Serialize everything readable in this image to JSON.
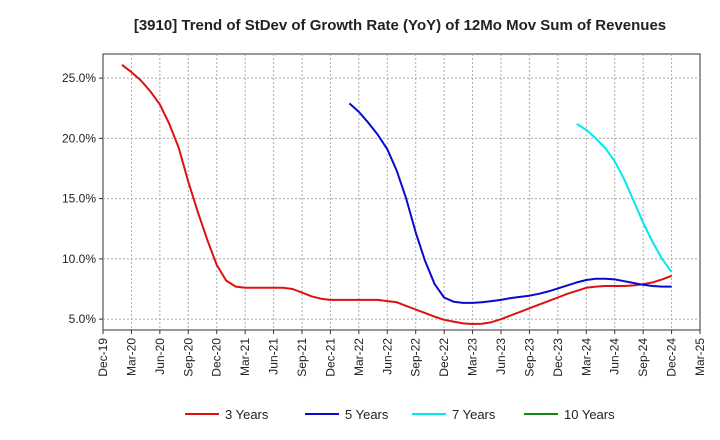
{
  "chart_data": {
    "type": "line",
    "title": "[3910]  Trend of StDev of Growth Rate (YoY) of 12Mo Mov Sum of Revenues",
    "xlabel": "",
    "ylabel": "",
    "ylim": [
      4.1,
      27.0
    ],
    "y_ticks": [
      5.0,
      10.0,
      15.0,
      20.0,
      25.0
    ],
    "y_tick_labels": [
      "5.0%",
      "10.0%",
      "15.0%",
      "20.0%",
      "25.0%"
    ],
    "x_tick_labels": [
      "Dec-19",
      "Mar-20",
      "Jun-20",
      "Sep-20",
      "Dec-20",
      "Mar-21",
      "Jun-21",
      "Sep-21",
      "Dec-21",
      "Mar-22",
      "Jun-22",
      "Sep-22",
      "Dec-22",
      "Mar-23",
      "Jun-23",
      "Sep-23",
      "Dec-23",
      "Mar-24",
      "Jun-24",
      "Sep-24",
      "Dec-24",
      "Mar-25"
    ],
    "x_range_months": [
      0,
      63
    ],
    "grid": true,
    "legend_position": "bottom",
    "series": [
      {
        "name": "3 Years",
        "color": "#dd1111",
        "x": [
          2,
          3,
          4,
          5,
          6,
          7,
          8,
          9,
          10,
          11,
          12,
          13,
          14,
          15,
          16,
          17,
          18,
          19,
          20,
          21,
          22,
          23,
          24,
          25,
          26,
          27,
          28,
          29,
          30,
          31,
          32,
          33,
          34,
          35,
          36,
          37,
          38,
          39,
          40,
          41,
          42,
          43,
          44,
          45,
          46,
          47,
          48,
          49,
          50,
          51,
          52,
          53,
          54,
          55,
          56,
          57,
          58,
          59,
          60
        ],
        "values": [
          26.1,
          25.5,
          24.8,
          23.9,
          22.8,
          21.2,
          19.2,
          16.4,
          13.9,
          11.6,
          9.5,
          8.2,
          7.7,
          7.6,
          7.6,
          7.6,
          7.6,
          7.6,
          7.5,
          7.2,
          6.9,
          6.7,
          6.6,
          6.6,
          6.6,
          6.6,
          6.6,
          6.6,
          6.5,
          6.4,
          6.1,
          5.8,
          5.5,
          5.2,
          4.95,
          4.8,
          4.65,
          4.6,
          4.62,
          4.75,
          5.0,
          5.3,
          5.6,
          5.9,
          6.2,
          6.5,
          6.8,
          7.1,
          7.35,
          7.6,
          7.7,
          7.75,
          7.75,
          7.75,
          7.8,
          7.9,
          8.05,
          8.3,
          8.6
        ]
      },
      {
        "name": "5 Years",
        "color": "#0a0acc",
        "x": [
          26,
          27,
          28,
          29,
          30,
          31,
          32,
          33,
          34,
          35,
          36,
          37,
          38,
          39,
          40,
          41,
          42,
          43,
          44,
          45,
          46,
          47,
          48,
          49,
          50,
          51,
          52,
          53,
          54,
          55,
          56,
          57,
          58,
          59,
          60
        ],
        "values": [
          22.9,
          22.2,
          21.3,
          20.3,
          19.1,
          17.3,
          15.0,
          12.2,
          9.8,
          7.9,
          6.8,
          6.45,
          6.35,
          6.35,
          6.4,
          6.5,
          6.6,
          6.75,
          6.85,
          6.95,
          7.1,
          7.3,
          7.55,
          7.8,
          8.05,
          8.25,
          8.35,
          8.35,
          8.3,
          8.15,
          8.0,
          7.85,
          7.75,
          7.7,
          7.7
        ]
      },
      {
        "name": "7 Years",
        "color": "#00e8ee",
        "x": [
          50,
          51,
          52,
          53,
          54,
          55,
          56,
          57,
          58,
          59,
          60
        ],
        "values": [
          21.2,
          20.7,
          20.0,
          19.2,
          18.1,
          16.6,
          14.8,
          13.0,
          11.4,
          10.0,
          8.9
        ]
      },
      {
        "name": "10 Years",
        "color": "#118811",
        "x": [],
        "values": []
      }
    ]
  }
}
